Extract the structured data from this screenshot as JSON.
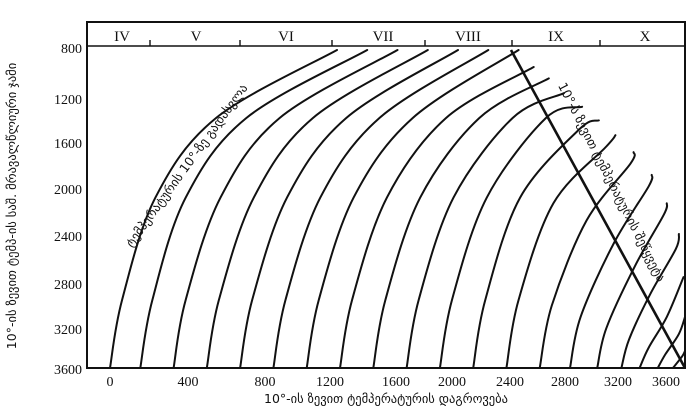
{
  "chart_data": {
    "type": "line",
    "title": "",
    "xlabel": "10°-ის ზევით ტემპერატურის დაგროვება",
    "ylabel": "10°-ის ზევით ტემპ-ის საშ. მრავალწლიური ჯამი",
    "xlim": [
      0,
      3800
    ],
    "ylim": [
      800,
      3600
    ],
    "y_inverted": true,
    "x_ticks": [
      "0",
      "400",
      "800",
      "1200",
      "1600",
      "2000",
      "2400",
      "2800",
      "3200",
      "3600"
    ],
    "y_ticks": [
      "800",
      "1200",
      "1600",
      "2000",
      "2400",
      "2800",
      "3200",
      "3600"
    ],
    "month_labels": [
      "IV",
      "V",
      "VI",
      "VII",
      "VIII",
      "IX",
      "X"
    ],
    "annotations": {
      "start_curve": "ტემპერატურის 10°-ზე გადასვლა",
      "end_line": "10°-ს ზევით ტემპერატურის შეწყვეტა"
    },
    "grid": false,
    "series": [
      {
        "x": [
          0,
          80,
          300,
          700,
          1500
        ],
        "y": [
          3600,
          3000,
          2100,
          1400,
          800
        ]
      },
      {
        "x": [
          200,
          280,
          500,
          900,
          1700
        ],
        "y": [
          3600,
          3000,
          2100,
          1400,
          800
        ]
      },
      {
        "x": [
          420,
          500,
          730,
          1120,
          1900
        ],
        "y": [
          3600,
          3000,
          2100,
          1400,
          800
        ]
      },
      {
        "x": [
          640,
          720,
          950,
          1340,
          2100
        ],
        "y": [
          3600,
          3000,
          2100,
          1400,
          800
        ]
      },
      {
        "x": [
          860,
          940,
          1170,
          1560,
          2300
        ],
        "y": [
          3600,
          3000,
          2100,
          1400,
          800
        ]
      },
      {
        "x": [
          1080,
          1160,
          1390,
          1780,
          2500
        ],
        "y": [
          3600,
          3000,
          2100,
          1400,
          800
        ]
      },
      {
        "x": [
          1300,
          1380,
          1610,
          2000,
          2700
        ],
        "y": [
          3600,
          3000,
          2100,
          1400,
          800
        ]
      },
      {
        "x": [
          1520,
          1600,
          1830,
          2220,
          2800
        ],
        "y": [
          3600,
          3000,
          2100,
          1400,
          950
        ]
      },
      {
        "x": [
          1740,
          1820,
          2050,
          2440,
          2900
        ],
        "y": [
          3600,
          3000,
          2100,
          1400,
          1050
        ]
      },
      {
        "x": [
          1960,
          2040,
          2270,
          2660,
          3000
        ],
        "y": [
          3600,
          3000,
          2100,
          1400,
          1180
        ]
      },
      {
        "x": [
          2180,
          2260,
          2490,
          2880,
          3120
        ],
        "y": [
          3600,
          3000,
          2100,
          1400,
          1300
        ]
      },
      {
        "x": [
          2400,
          2480,
          2710,
          3100,
          3230
        ],
        "y": [
          3600,
          3000,
          2100,
          1500,
          1420
        ]
      },
      {
        "x": [
          2620,
          2700,
          2930,
          3280,
          3340
        ],
        "y": [
          3600,
          3000,
          2150,
          1650,
          1550
        ]
      },
      {
        "x": [
          2840,
          2920,
          3150,
          3440,
          3460
        ],
        "y": [
          3600,
          3050,
          2300,
          1800,
          1700
        ]
      },
      {
        "x": [
          3040,
          3110,
          3330,
          3560,
          3580
        ],
        "y": [
          3600,
          3150,
          2500,
          2000,
          1900
        ]
      },
      {
        "x": [
          3220,
          3280,
          3470,
          3660,
          3680
        ],
        "y": [
          3600,
          3250,
          2700,
          2250,
          2150
        ]
      },
      {
        "x": [
          3380,
          3430,
          3570,
          3740,
          3760
        ],
        "y": [
          3600,
          3350,
          2950,
          2550,
          2420
        ]
      },
      {
        "x": [
          3500,
          3560,
          3680,
          3790
        ],
        "y": [
          3600,
          3420,
          3150,
          2800
        ]
      },
      {
        "x": [
          3620,
          3670,
          3760,
          3800
        ],
        "y": [
          3600,
          3480,
          3300,
          3150
        ]
      },
      {
        "x": [
          3720,
          3780,
          3800
        ],
        "y": [
          3600,
          3500,
          3450
        ]
      }
    ],
    "end_line": {
      "x": [
        2650,
        3800
      ],
      "y": [
        800,
        3600
      ]
    }
  }
}
